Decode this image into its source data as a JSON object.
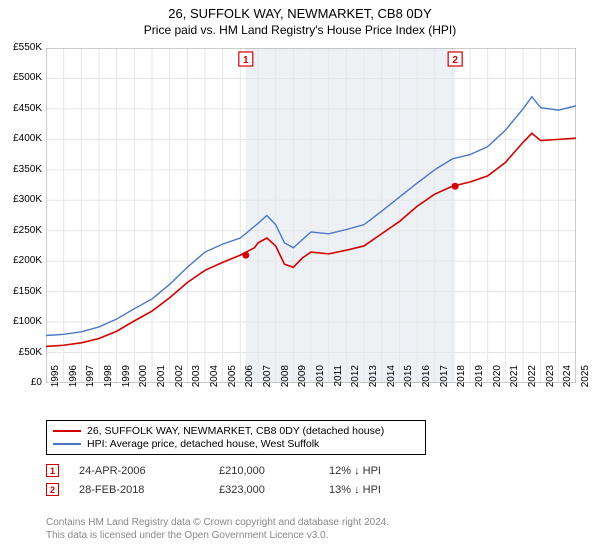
{
  "title_line1": "26, SUFFOLK WAY, NEWMARKET, CB8 0DY",
  "title_line2": "Price paid vs. HM Land Registry's House Price Index (HPI)",
  "chart": {
    "type": "line",
    "x_start_year": 1995,
    "x_end_year": 2025,
    "x_ticks": [
      1995,
      1996,
      1997,
      1998,
      1999,
      2000,
      2001,
      2002,
      2003,
      2004,
      2005,
      2006,
      2007,
      2008,
      2009,
      2010,
      2011,
      2012,
      2013,
      2014,
      2015,
      2016,
      2017,
      2018,
      2019,
      2020,
      2021,
      2022,
      2023,
      2024,
      2025
    ],
    "y_min": 0,
    "y_max": 550000,
    "y_tick_step": 50000,
    "y_ticks": [
      "£0",
      "£50K",
      "£100K",
      "£150K",
      "£200K",
      "£250K",
      "£300K",
      "£350K",
      "£400K",
      "£450K",
      "£500K",
      "£550K"
    ],
    "y_label_fontsize": 10,
    "x_label_fontsize": 10,
    "background_color": "#ffffff",
    "grid_color": "#e6e6e6",
    "shaded_band": {
      "x_from": 2006.3,
      "x_to": 2018.16,
      "fill": "#edf1f5"
    },
    "series": [
      {
        "name": "price_paid",
        "label": "26, SUFFOLK WAY, NEWMARKET, CB8 0DY (detached house)",
        "color": "#d40000",
        "line_width": 1.6,
        "points": [
          [
            1995,
            60000
          ],
          [
            1996,
            62000
          ],
          [
            1997,
            66000
          ],
          [
            1998,
            73000
          ],
          [
            1999,
            85000
          ],
          [
            2000,
            102000
          ],
          [
            2001,
            118000
          ],
          [
            2002,
            140000
          ],
          [
            2003,
            165000
          ],
          [
            2004,
            185000
          ],
          [
            2005,
            198000
          ],
          [
            2006,
            210000
          ],
          [
            2006.8,
            222000
          ],
          [
            2007,
            230000
          ],
          [
            2007.5,
            238000
          ],
          [
            2008,
            225000
          ],
          [
            2008.5,
            195000
          ],
          [
            2009,
            190000
          ],
          [
            2009.5,
            205000
          ],
          [
            2010,
            215000
          ],
          [
            2011,
            212000
          ],
          [
            2012,
            218000
          ],
          [
            2013,
            225000
          ],
          [
            2014,
            245000
          ],
          [
            2015,
            265000
          ],
          [
            2016,
            290000
          ],
          [
            2017,
            310000
          ],
          [
            2018,
            323000
          ],
          [
            2019,
            330000
          ],
          [
            2020,
            340000
          ],
          [
            2021,
            362000
          ],
          [
            2022,
            395000
          ],
          [
            2022.5,
            410000
          ],
          [
            2023,
            398000
          ],
          [
            2024,
            400000
          ],
          [
            2025,
            402000
          ]
        ]
      },
      {
        "name": "hpi",
        "label": "HPI: Average price, detached house, West Suffolk",
        "color": "#4a76c7",
        "line_width": 1.4,
        "points": [
          [
            1995,
            78000
          ],
          [
            1996,
            80000
          ],
          [
            1997,
            84000
          ],
          [
            1998,
            92000
          ],
          [
            1999,
            105000
          ],
          [
            2000,
            122000
          ],
          [
            2001,
            138000
          ],
          [
            2002,
            162000
          ],
          [
            2003,
            190000
          ],
          [
            2004,
            215000
          ],
          [
            2005,
            228000
          ],
          [
            2006,
            238000
          ],
          [
            2007,
            262000
          ],
          [
            2007.5,
            275000
          ],
          [
            2008,
            260000
          ],
          [
            2008.5,
            230000
          ],
          [
            2009,
            222000
          ],
          [
            2009.5,
            235000
          ],
          [
            2010,
            248000
          ],
          [
            2011,
            245000
          ],
          [
            2012,
            252000
          ],
          [
            2013,
            260000
          ],
          [
            2014,
            282000
          ],
          [
            2015,
            305000
          ],
          [
            2016,
            328000
          ],
          [
            2017,
            350000
          ],
          [
            2018,
            368000
          ],
          [
            2019,
            375000
          ],
          [
            2020,
            388000
          ],
          [
            2021,
            415000
          ],
          [
            2022,
            450000
          ],
          [
            2022.5,
            470000
          ],
          [
            2023,
            452000
          ],
          [
            2024,
            448000
          ],
          [
            2025,
            455000
          ]
        ]
      }
    ],
    "markers": [
      {
        "n": "1",
        "x": 2006.31,
        "y": 210000,
        "color": "#d40000"
      },
      {
        "n": "2",
        "x": 2018.16,
        "y": 323000,
        "color": "#d40000"
      }
    ],
    "marker_labels": [
      {
        "n": "1",
        "x": 2006.31,
        "color": "#d40000"
      },
      {
        "n": "2",
        "x": 2018.16,
        "color": "#d40000"
      }
    ]
  },
  "legend": {
    "rows": [
      {
        "color": "#d40000",
        "label": "26, SUFFOLK WAY, NEWMARKET, CB8 0DY (detached house)"
      },
      {
        "color": "#4a76c7",
        "label": "HPI: Average price, detached house, West Suffolk"
      }
    ]
  },
  "transactions": [
    {
      "n": "1",
      "color": "#d40000",
      "date": "24-APR-2006",
      "price": "£210,000",
      "delta": "12% ↓ HPI"
    },
    {
      "n": "2",
      "color": "#d40000",
      "date": "28-FEB-2018",
      "price": "£323,000",
      "delta": "13% ↓ HPI"
    }
  ],
  "footer_line1": "Contains HM Land Registry data © Crown copyright and database right 2024.",
  "footer_line2": "This data is licensed under the Open Government Licence v3.0."
}
